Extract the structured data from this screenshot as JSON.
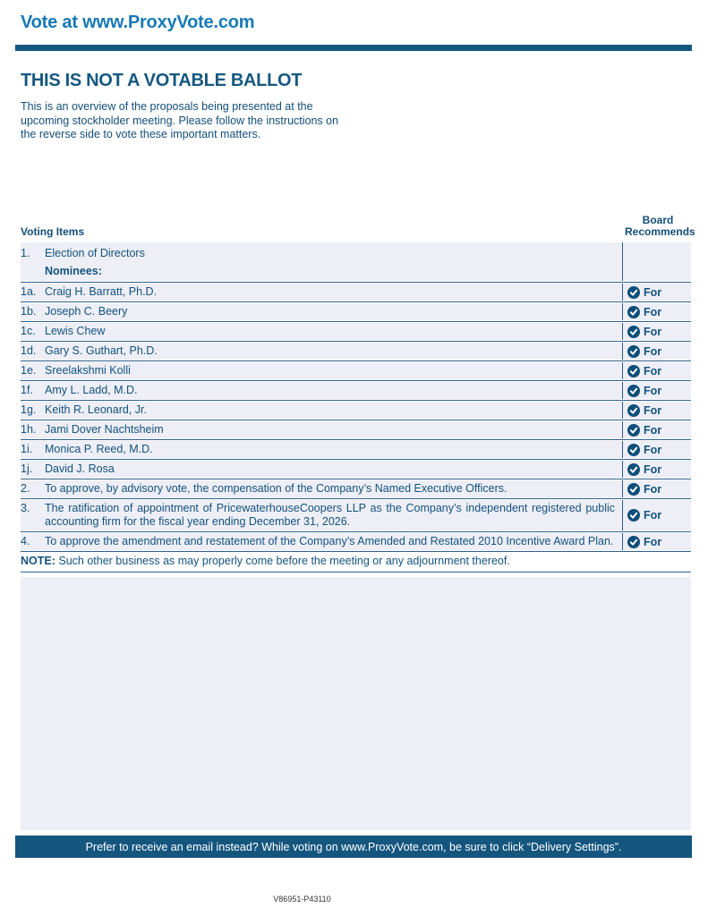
{
  "page": {
    "header_title": "Vote at www.ProxyVote.com",
    "heading": "THIS IS NOT A VOTABLE BALLOT",
    "intro": "This is an overview of the proposals being presented at the upcoming stockholder meeting. Please follow the instructions on the reverse side to vote these important matters.",
    "footer_banner": "Prefer to receive an email instead? While voting on www.ProxyVote.com, be sure to click “Delivery Settings”.",
    "form_code": "V86951-P43110"
  },
  "colors": {
    "brand_blue": "#1779b6",
    "dark_blue": "#15567f",
    "text_blue": "#134e78",
    "row_background": "#edeef6",
    "line_blue": "#2e5f8c",
    "check_circle": "#0d4e7a"
  },
  "table": {
    "col_items": "Voting Items",
    "col_recommend_line1": "Board",
    "col_recommend_line2": "Recommends",
    "check_icon": "check-circle-icon",
    "rows": [
      {
        "num": "1.",
        "lines": [
          {
            "text": "Election of Directors",
            "bold": false
          },
          {
            "text": "Nominees:",
            "bold": true
          }
        ],
        "recommend": null,
        "block": true
      },
      {
        "num": "1a.",
        "lines": [
          {
            "text": "Craig H. Barratt, Ph.D.",
            "bold": false
          }
        ],
        "recommend": "For"
      },
      {
        "num": "1b.",
        "lines": [
          {
            "text": "Joseph C. Beery",
            "bold": false
          }
        ],
        "recommend": "For"
      },
      {
        "num": "1c.",
        "lines": [
          {
            "text": "Lewis Chew",
            "bold": false
          }
        ],
        "recommend": "For"
      },
      {
        "num": "1d.",
        "lines": [
          {
            "text": "Gary S. Guthart, Ph.D.",
            "bold": false
          }
        ],
        "recommend": "For"
      },
      {
        "num": "1e.",
        "lines": [
          {
            "text": "Sreelakshmi Kolli",
            "bold": false
          }
        ],
        "recommend": "For"
      },
      {
        "num": "1f.",
        "lines": [
          {
            "text": "Amy L. Ladd, M.D.",
            "bold": false
          }
        ],
        "recommend": "For"
      },
      {
        "num": "1g.",
        "lines": [
          {
            "text": "Keith R. Leonard, Jr.",
            "bold": false
          }
        ],
        "recommend": "For"
      },
      {
        "num": "1h.",
        "lines": [
          {
            "text": "Jami Dover Nachtsheim",
            "bold": false
          }
        ],
        "recommend": "For"
      },
      {
        "num": "1i.",
        "lines": [
          {
            "text": "Monica P. Reed, M.D.",
            "bold": false
          }
        ],
        "recommend": "For"
      },
      {
        "num": "1j.",
        "lines": [
          {
            "text": "David J. Rosa",
            "bold": false
          }
        ],
        "recommend": "For"
      },
      {
        "num": "2.",
        "lines": [
          {
            "text": "To approve, by advisory vote, the compensation of the Company’s Named Executive Officers.",
            "bold": false
          }
        ],
        "recommend": "For"
      },
      {
        "num": "3.",
        "lines": [
          {
            "text": "The ratification of appointment of PricewaterhouseCoopers LLP as the Company’s independent registered public accounting firm for the fiscal year ending December 31, 2026.",
            "bold": false
          }
        ],
        "recommend": "For",
        "justify": true
      },
      {
        "num": "4.",
        "lines": [
          {
            "text": "To approve the amendment and restatement of the Company’s Amended and Restated 2010 Incentive Award Plan.",
            "bold": false
          }
        ],
        "recommend": "For"
      }
    ],
    "note_label": "NOTE:",
    "note_text": " Such other business as may properly come before the meeting or any adjournment thereof."
  }
}
